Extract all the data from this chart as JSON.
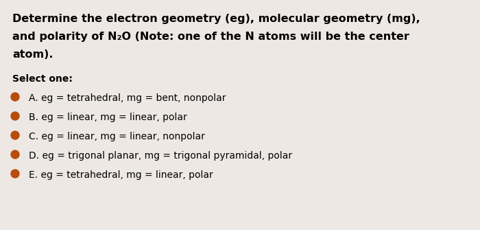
{
  "background_color": "#ede8e4",
  "title_lines": [
    "Determine the electron geometry (eg), molecular geometry (mg),",
    "and polarity of N₂O (Note: one of the N atoms will be the center",
    "atom)."
  ],
  "select_one_label": "Select one:",
  "options": [
    "A. eg = tetrahedral, mg = bent, nonpolar",
    "B. eg = linear, mg = linear, polar",
    "C. eg = linear, mg = linear, nonpolar",
    "D. eg = trigonal planar, mg = trigonal pyramidal, polar",
    "E. eg = tetrahedral, mg = linear, polar"
  ],
  "dot_color": "#b84c0a",
  "title_fontsize": 11.5,
  "option_fontsize": 10.0,
  "select_fontsize": 10.0,
  "title_font_weight": "bold",
  "option_font_weight": "normal",
  "select_font_weight": "bold"
}
